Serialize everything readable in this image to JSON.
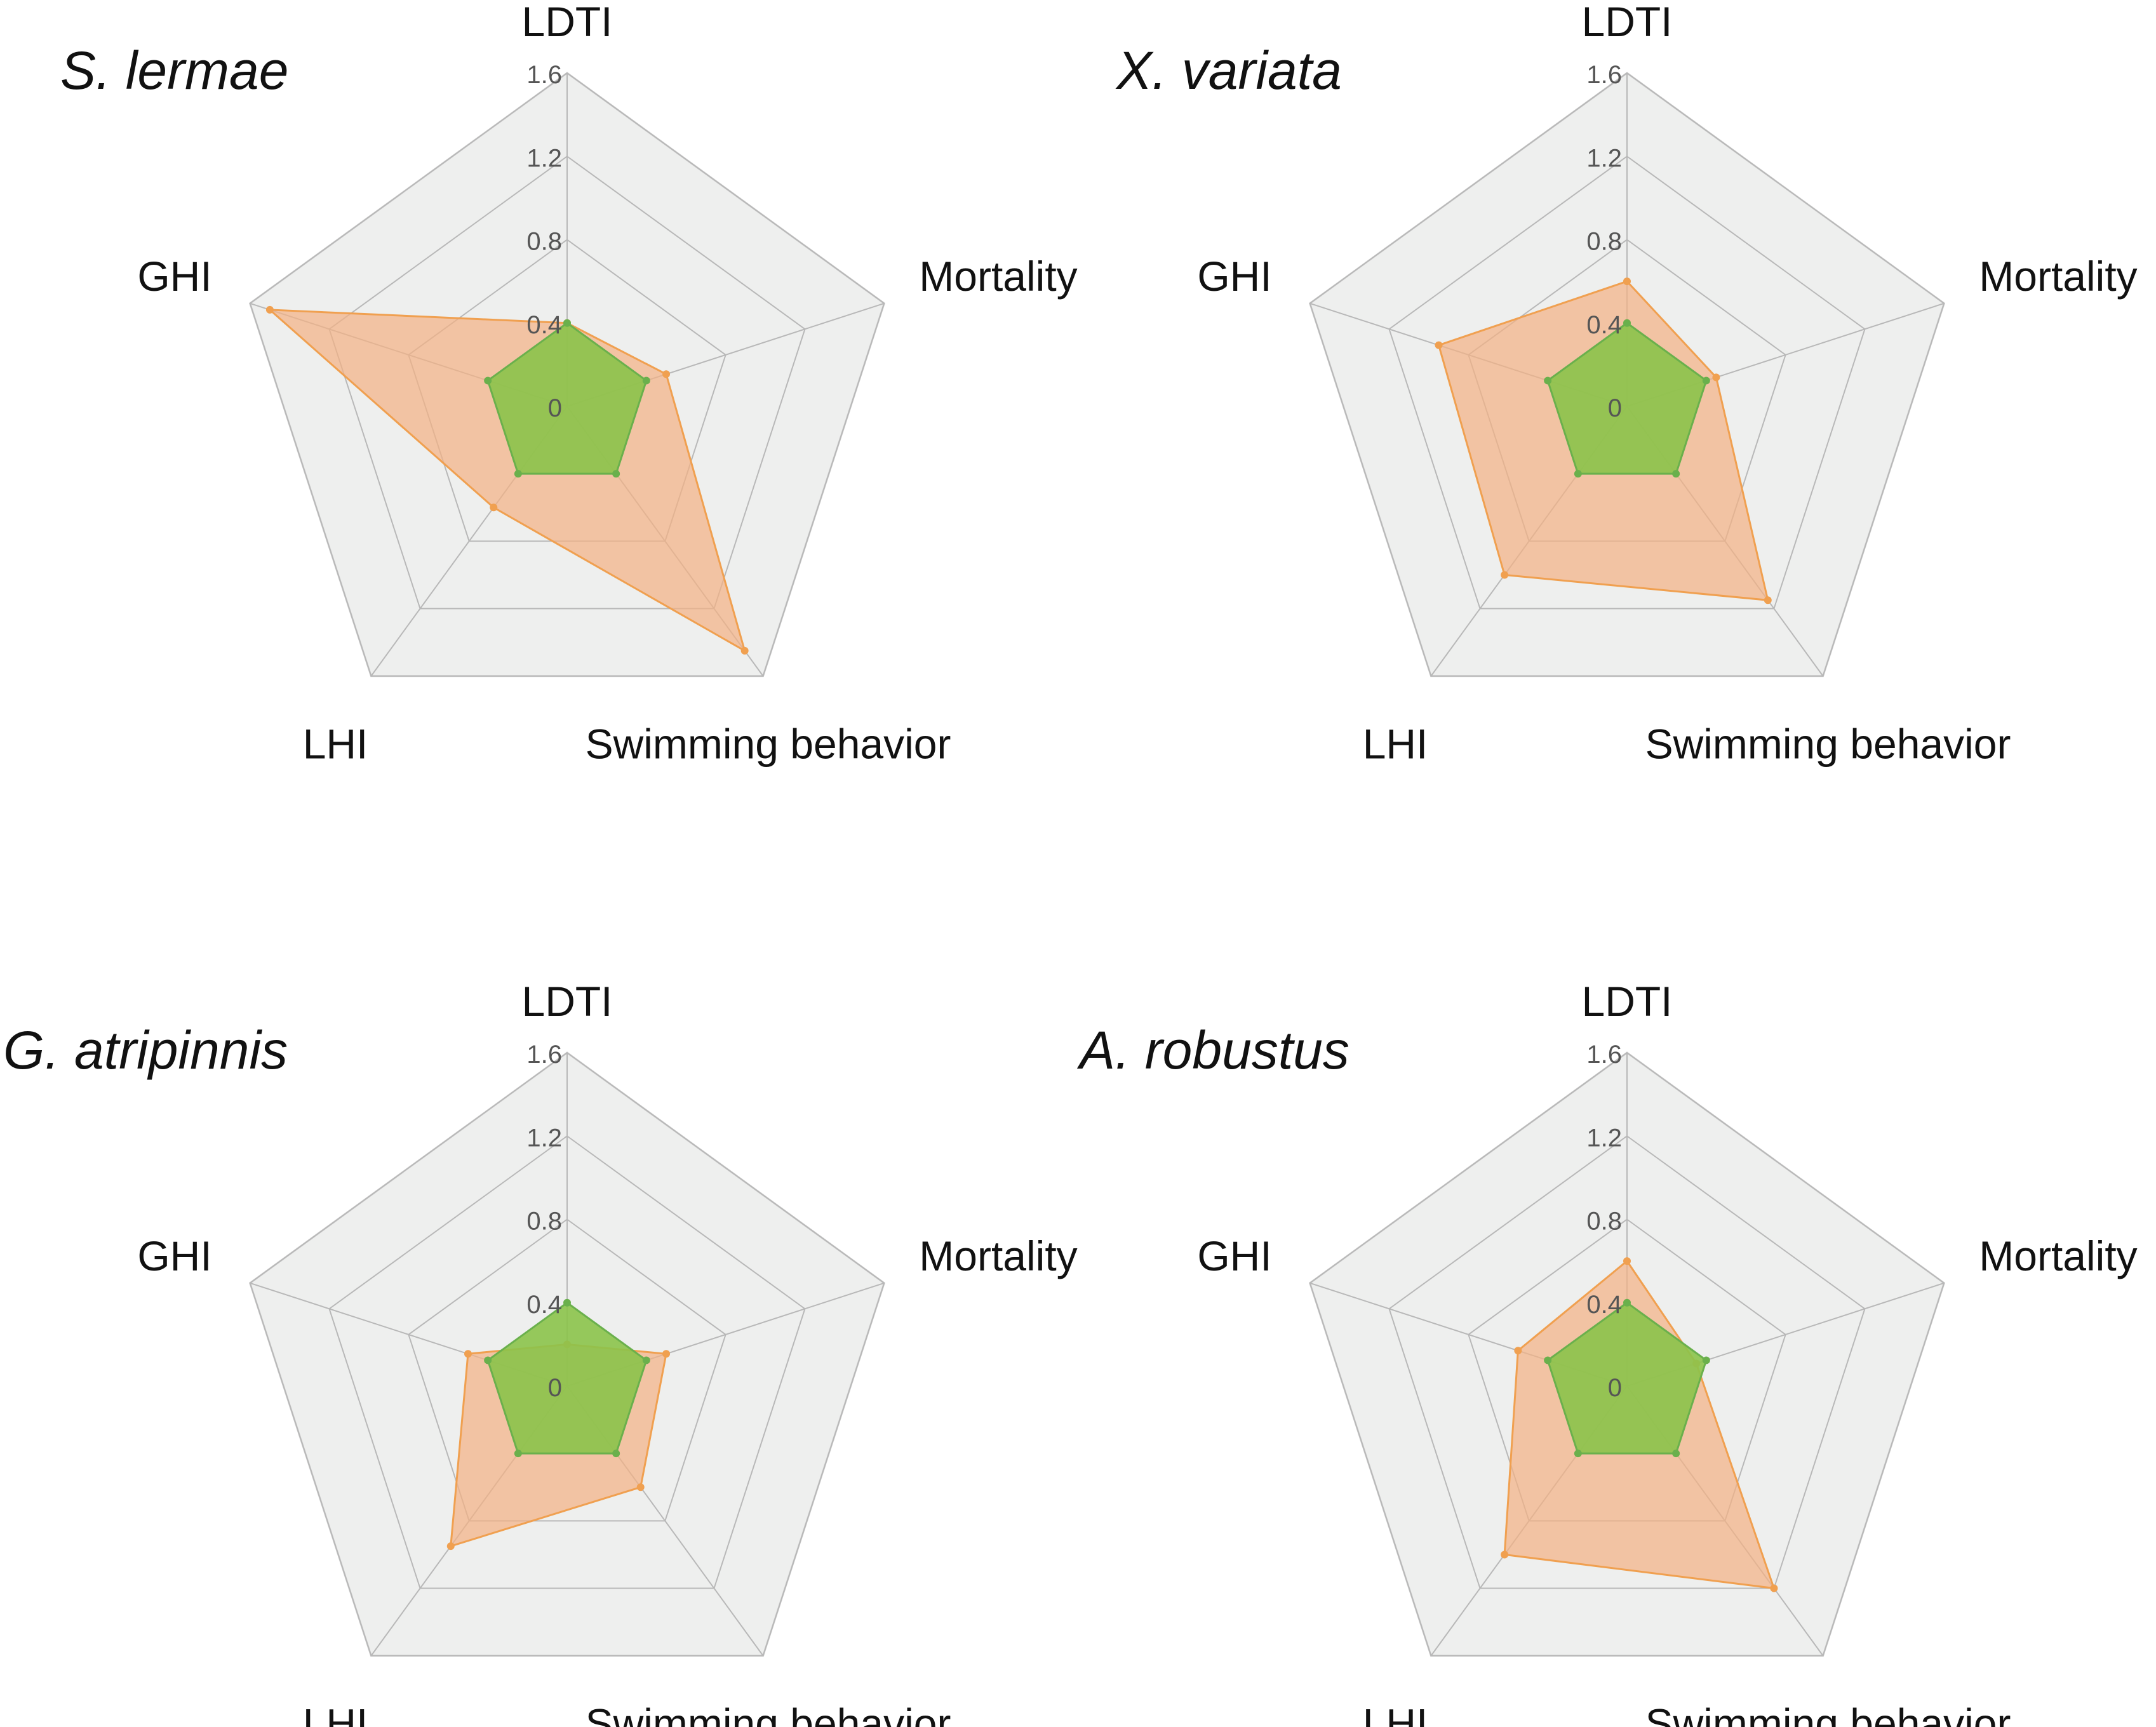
{
  "chart_data": [
    {
      "type": "radar",
      "title": "S. lermae",
      "axes": [
        "LDTI",
        "Mortality",
        "Swimming behavior",
        "LHI",
        "GHI"
      ],
      "rlim": [
        0,
        1.6
      ],
      "ticks": [
        "0",
        "0.4",
        "0.8",
        "1.2",
        "1.6"
      ],
      "grid": true,
      "series": [
        {
          "color": "#f4b183",
          "stroke": "#f0a050",
          "values": [
            0.4,
            0.5,
            1.45,
            0.6,
            1.5
          ]
        },
        {
          "color": "#8bc34a",
          "stroke": "#6ab04c",
          "values": [
            0.4,
            0.4,
            0.4,
            0.4,
            0.4
          ]
        }
      ]
    },
    {
      "type": "radar",
      "title": "X. variata",
      "axes": [
        "LDTI",
        "Mortality",
        "Swimming behavior",
        "LHI",
        "GHI"
      ],
      "rlim": [
        0,
        1.6
      ],
      "ticks": [
        "0",
        "0.4",
        "0.8",
        "1.2",
        "1.6"
      ],
      "grid": true,
      "series": [
        {
          "color": "#f4b183",
          "stroke": "#f0a050",
          "values": [
            0.6,
            0.45,
            1.15,
            1.0,
            0.95
          ]
        },
        {
          "color": "#8bc34a",
          "stroke": "#6ab04c",
          "values": [
            0.4,
            0.4,
            0.4,
            0.4,
            0.4
          ]
        }
      ]
    },
    {
      "type": "radar",
      "title": "G. atripinnis",
      "axes": [
        "LDTI",
        "Mortality",
        "Swimming behavior",
        "LHI",
        "GHI"
      ],
      "rlim": [
        0,
        1.6
      ],
      "ticks": [
        "0",
        "0.4",
        "0.8",
        "1.2",
        "1.6"
      ],
      "grid": true,
      "series": [
        {
          "color": "#f4b183",
          "stroke": "#f0a050",
          "values": [
            0.2,
            0.5,
            0.6,
            0.95,
            0.5
          ]
        },
        {
          "color": "#8bc34a",
          "stroke": "#6ab04c",
          "values": [
            0.4,
            0.4,
            0.4,
            0.4,
            0.4
          ]
        }
      ]
    },
    {
      "type": "radar",
      "title": "A. robustus",
      "axes": [
        "LDTI",
        "Mortality",
        "Swimming behavior",
        "LHI",
        "GHI"
      ],
      "rlim": [
        0,
        1.6
      ],
      "ticks": [
        "0",
        "0.4",
        "0.8",
        "1.2",
        "1.6"
      ],
      "grid": true,
      "series": [
        {
          "color": "#f4b183",
          "stroke": "#f0a050",
          "values": [
            0.6,
            0.35,
            1.2,
            1.0,
            0.55
          ]
        },
        {
          "color": "#8bc34a",
          "stroke": "#6ab04c",
          "values": [
            0.4,
            0.4,
            0.4,
            0.4,
            0.4
          ]
        }
      ]
    }
  ]
}
